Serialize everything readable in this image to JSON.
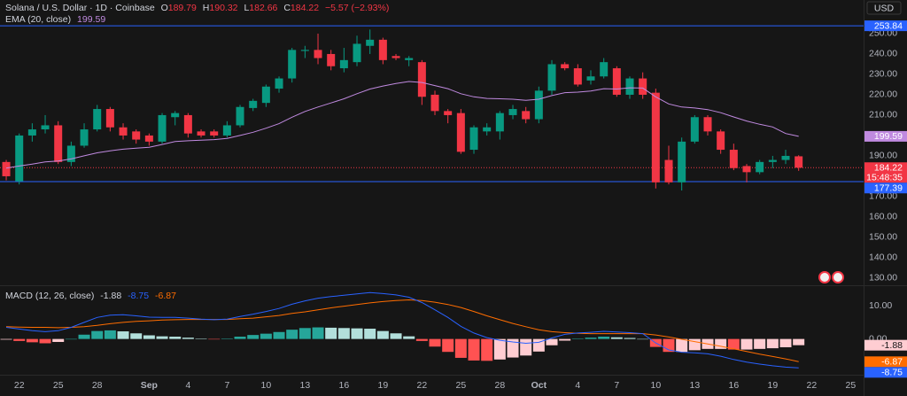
{
  "chart_data": [
    {
      "type": "candlestick",
      "title": "Solana / U.S. Dollar · 1D · Coinbase",
      "ohlc_keys": [
        "O",
        "H",
        "L",
        "C"
      ],
      "change_text": "−5.57 (−2.93%)",
      "currency": "USD",
      "up_color": "#089981",
      "down_color": "#f23645",
      "open": [
        187,
        177.5,
        200,
        203,
        205,
        187,
        195,
        203,
        213,
        204,
        202,
        200,
        197,
        209,
        210,
        202,
        202,
        200,
        205,
        213.5,
        216,
        223,
        228,
        241.5,
        242,
        240,
        233,
        236,
        244,
        247,
        239,
        237,
        236,
        220,
        212,
        211,
        193,
        202,
        202,
        210,
        212,
        208,
        222,
        235,
        233,
        227,
        229,
        233,
        220,
        228,
        221,
        188,
        177,
        197,
        209,
        202,
        193,
        185,
        182,
        187,
        188,
        189.79
      ],
      "high": [
        188,
        201,
        206,
        210,
        207,
        197,
        206,
        215,
        214,
        206,
        203,
        201,
        211,
        212,
        211,
        203,
        203,
        207,
        215,
        218,
        225,
        229,
        243,
        244,
        250,
        242,
        243,
        249,
        252,
        248,
        240,
        239,
        237,
        222,
        213,
        213,
        205,
        206,
        212,
        215,
        214,
        224,
        237,
        236,
        235,
        232,
        238,
        234,
        229,
        231,
        223,
        195,
        199,
        210,
        210,
        203,
        196,
        186,
        188,
        190,
        193,
        190.32
      ],
      "low": [
        178,
        176,
        197,
        201,
        186,
        185,
        194,
        202,
        202,
        198,
        196,
        195,
        196,
        205,
        199,
        199,
        199,
        199,
        204,
        212,
        214,
        221,
        226,
        238,
        235,
        232,
        231,
        234,
        240,
        235,
        237,
        234,
        215,
        210,
        206,
        191,
        191,
        200,
        198,
        208,
        206,
        206,
        220,
        232,
        224,
        225,
        228,
        219,
        218,
        218,
        174,
        176,
        173,
        196,
        200,
        191,
        183,
        177,
        181,
        184,
        186,
        182.66
      ],
      "close": [
        180,
        200,
        203,
        205,
        187,
        195,
        203,
        213,
        204,
        200,
        198,
        197,
        210,
        211,
        201,
        200,
        200,
        205,
        214,
        217,
        224,
        228,
        242,
        242,
        238,
        234,
        237,
        245,
        247,
        237,
        238,
        238,
        219,
        212,
        210,
        192,
        204,
        204,
        211,
        213,
        208,
        222,
        235,
        233,
        225,
        229,
        236,
        220,
        228,
        220,
        177,
        177,
        197,
        209,
        202,
        193,
        184,
        182,
        187,
        188,
        190,
        184.22
      ],
      "ema": {
        "name": "EMA (20, close)",
        "color": "#c08ae0",
        "values": [
          184,
          185,
          186,
          187,
          187.5,
          188.5,
          190,
          191.5,
          192.5,
          193.3,
          193.8,
          194.2,
          195.6,
          197,
          197.4,
          197.7,
          198,
          198.6,
          200,
          201.6,
          203.6,
          205.8,
          209,
          211.8,
          214,
          216,
          218,
          220.5,
          222.8,
          224.3,
          225.5,
          226.5,
          226,
          224.5,
          223,
          220.5,
          219,
          218.2,
          218,
          217.8,
          217.3,
          217.8,
          219.6,
          221,
          221.3,
          221.8,
          223,
          222.8,
          223.4,
          223.3,
          219,
          215.5,
          214,
          213.5,
          212.7,
          211.2,
          209.1,
          207.1,
          205.5,
          204.2,
          201,
          199.59
        ]
      },
      "countdown": "15:48:35",
      "hlines": [
        {
          "value": 253.84,
          "color": "#2962ff"
        },
        {
          "value": 177.39,
          "color": "#2962ff"
        }
      ],
      "ylim": [
        126.5,
        266.5
      ],
      "yticks": [
        {
          "value": 130,
          "label": "130.00"
        },
        {
          "value": 140,
          "label": "140.00"
        },
        {
          "value": 150,
          "label": "150.00"
        },
        {
          "value": 160,
          "label": "160.00"
        },
        {
          "value": 170,
          "label": "170.00"
        },
        {
          "value": 190,
          "label": "190.00"
        },
        {
          "value": 210,
          "label": "210.00"
        },
        {
          "value": 220,
          "label": "220.00"
        },
        {
          "value": 230,
          "label": "230.00"
        },
        {
          "value": 240,
          "label": "240.00"
        },
        {
          "value": 250,
          "label": "250.00"
        }
      ],
      "xlim": [
        -0.48,
        66
      ],
      "xticks": [
        {
          "value": 1,
          "label": "22"
        },
        {
          "value": 4,
          "label": "25"
        },
        {
          "value": 7,
          "label": "28"
        },
        {
          "value": 11,
          "label": "Sep"
        },
        {
          "value": 14,
          "label": "4"
        },
        {
          "value": 17,
          "label": "7"
        },
        {
          "value": 20,
          "label": "10"
        },
        {
          "value": 23,
          "label": "13"
        },
        {
          "value": 26,
          "label": "16"
        },
        {
          "value": 29,
          "label": "19"
        },
        {
          "value": 32,
          "label": "22"
        },
        {
          "value": 35,
          "label": "25"
        },
        {
          "value": 38,
          "label": "28"
        },
        {
          "value": 41,
          "label": "Oct"
        },
        {
          "value": 44,
          "label": "4"
        },
        {
          "value": 47,
          "label": "7"
        },
        {
          "value": 50,
          "label": "10"
        },
        {
          "value": 53,
          "label": "13"
        },
        {
          "value": 56,
          "label": "16"
        },
        {
          "value": 59,
          "label": "19"
        },
        {
          "value": 62,
          "label": "22"
        },
        {
          "value": 65,
          "label": "25"
        }
      ]
    },
    {
      "type": "macd",
      "title": "MACD (12, 26, close)",
      "histogram": {
        "colors": {
          "rising_positive": "#26a69a",
          "falling_positive": "#b2dfdb",
          "falling_negative": "#ff5252",
          "rising_negative": "#ffcdd2"
        },
        "values": [
          -0.2,
          -0.6,
          -1.0,
          -1.3,
          -0.9,
          0,
          1.3,
          2.4,
          2.6,
          2.3,
          1.7,
          1.1,
          0.8,
          0.7,
          0.4,
          0.1,
          -0.1,
          0.1,
          0.7,
          1.2,
          1.6,
          2.1,
          2.8,
          3.3,
          3.5,
          3.4,
          3.3,
          3.2,
          3.1,
          2.4,
          1.7,
          0.8,
          -0.6,
          -2.3,
          -3.9,
          -5.7,
          -6.5,
          -6.6,
          -6.2,
          -5.6,
          -5.0,
          -3.8,
          -1.9,
          -0.5,
          0.1,
          0.4,
          0.7,
          0.5,
          0.3,
          0,
          -2.4,
          -3.9,
          -3.9,
          -3.4,
          -3.0,
          -3.0,
          -3.2,
          -3.2,
          -3.0,
          -2.8,
          -2.5,
          -1.88
        ]
      },
      "macd": {
        "color": "#2962ff",
        "values": [
          3.5,
          3.0,
          2.5,
          2.2,
          2.5,
          3.5,
          5.0,
          6.5,
          7.2,
          7.3,
          7.0,
          6.6,
          6.5,
          6.5,
          6.3,
          6.0,
          5.8,
          6.0,
          6.8,
          7.5,
          8.3,
          9.2,
          10.5,
          11.5,
          12.3,
          12.8,
          13.2,
          13.6,
          14.0,
          13.7,
          13.3,
          12.6,
          11.0,
          8.8,
          6.5,
          3.8,
          1.8,
          0.4,
          -0.4,
          -0.9,
          -1.3,
          -1.0,
          0.3,
          1.4,
          1.8,
          2.0,
          2.3,
          2.1,
          1.9,
          1.6,
          -1.2,
          -3.3,
          -4.0,
          -4.2,
          -4.5,
          -5.2,
          -6.2,
          -7.0,
          -7.6,
          -8.1,
          -8.5,
          -8.75
        ]
      },
      "signal": {
        "color": "#ff6d00",
        "values": [
          3.7,
          3.6,
          3.5,
          3.5,
          3.4,
          3.5,
          3.7,
          4.1,
          4.6,
          5.0,
          5.3,
          5.5,
          5.7,
          5.8,
          5.9,
          5.9,
          5.9,
          5.9,
          6.1,
          6.3,
          6.7,
          7.1,
          7.7,
          8.2,
          8.8,
          9.4,
          9.9,
          10.4,
          10.9,
          11.3,
          11.6,
          11.8,
          11.6,
          11.1,
          10.4,
          9.5,
          8.3,
          7.0,
          5.8,
          4.7,
          3.7,
          2.8,
          2.2,
          1.9,
          1.7,
          1.6,
          1.6,
          1.6,
          1.6,
          1.6,
          1.2,
          0.6,
          -0.1,
          -0.8,
          -1.5,
          -2.2,
          -3.0,
          -3.8,
          -4.6,
          -5.3,
          -6.0,
          -6.87
        ]
      },
      "ylim": [
        -10.8,
        15.95
      ],
      "yticks": [
        {
          "value": 0,
          "label": "0.00"
        },
        {
          "value": 10,
          "label": "10.00"
        }
      ]
    }
  ]
}
